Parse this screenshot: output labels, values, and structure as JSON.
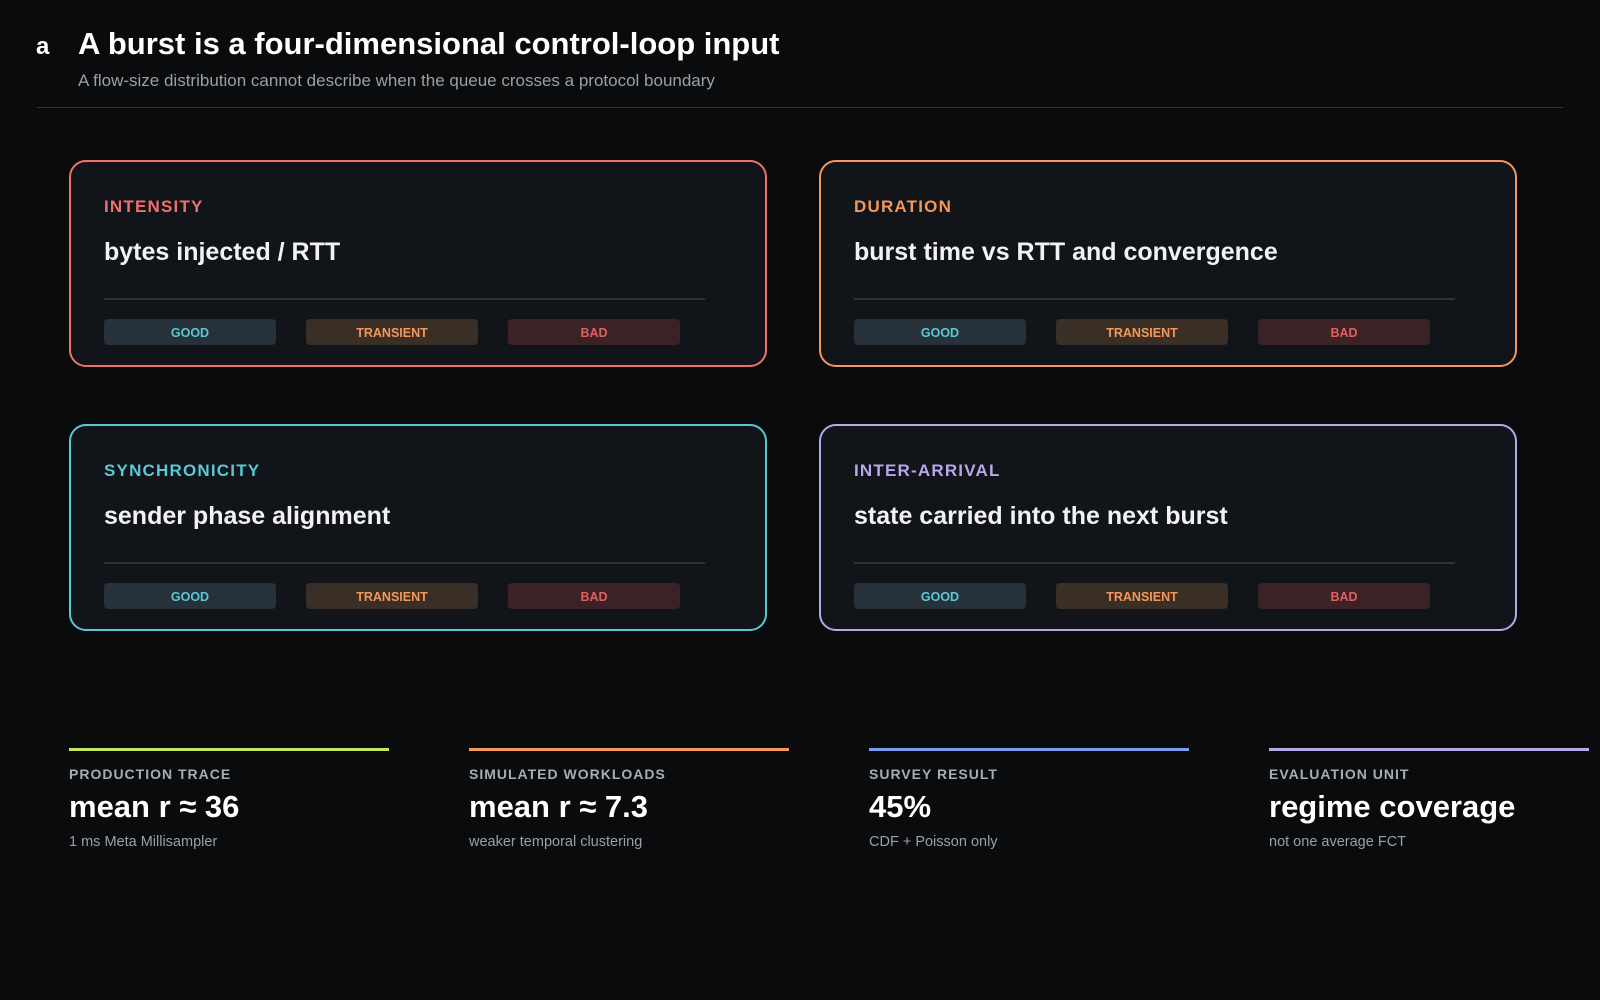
{
  "panel_label": "a",
  "header": {
    "title": "A burst is a four-dimensional control-loop input",
    "subtitle": "A flow-size distribution cannot describe when the queue crosses a protocol boundary"
  },
  "cards": [
    {
      "label": "INTENSITY",
      "description": "bytes injected / RTT",
      "pills": [
        "GOOD",
        "TRANSIENT",
        "BAD"
      ]
    },
    {
      "label": "DURATION",
      "description": "burst time vs RTT and convergence",
      "pills": [
        "GOOD",
        "TRANSIENT",
        "BAD"
      ]
    },
    {
      "label": "SYNCHRONICITY",
      "description": "sender phase alignment",
      "pills": [
        "GOOD",
        "TRANSIENT",
        "BAD"
      ]
    },
    {
      "label": "INTER-ARRIVAL",
      "description": "state carried into the next burst",
      "pills": [
        "GOOD",
        "TRANSIENT",
        "BAD"
      ]
    }
  ],
  "stats": [
    {
      "label": "PRODUCTION TRACE",
      "value": "mean r ≈ 36",
      "note": "1 ms Meta Millisampler"
    },
    {
      "label": "SIMULATED WORKLOADS",
      "value": "mean r ≈ 7.3",
      "note": "weaker temporal clustering"
    },
    {
      "label": "SURVEY RESULT",
      "value": "45%",
      "note": "CDF + Poisson only"
    },
    {
      "label": "EVALUATION UNIT",
      "value": "regime coverage",
      "note": "not one average FCT"
    }
  ]
}
